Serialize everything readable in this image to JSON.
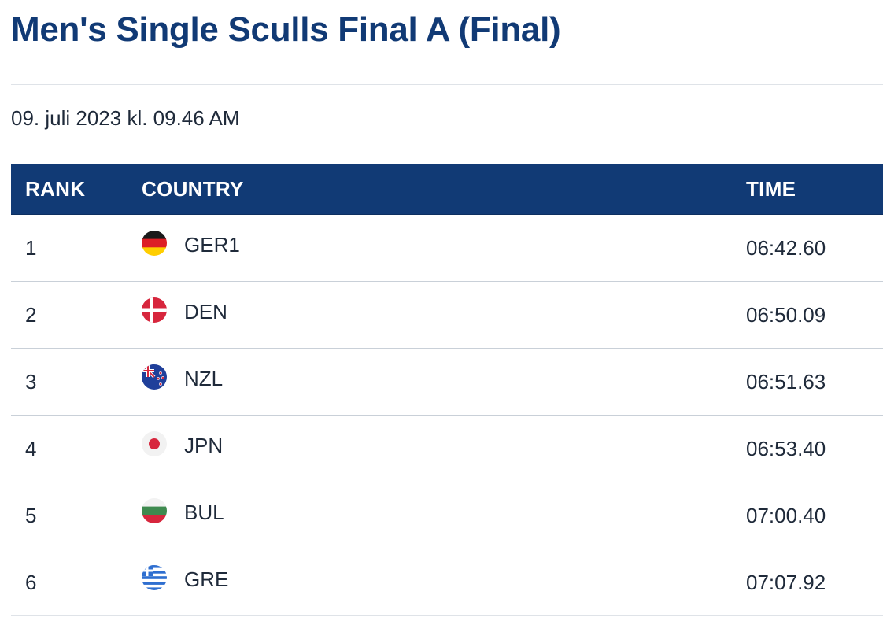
{
  "page": {
    "title": "Men's Single Sculls Final A (Final)",
    "date": "09. juli 2023 kl. 09.46 AM"
  },
  "table": {
    "headers": {
      "rank": "RANK",
      "country": "COUNTRY",
      "time": "TIME"
    },
    "rows": [
      {
        "rank": "1",
        "country": "GER1",
        "flag": "germany-flag-icon",
        "time": "06:42.60"
      },
      {
        "rank": "2",
        "country": "DEN",
        "flag": "denmark-flag-icon",
        "time": "06:50.09"
      },
      {
        "rank": "3",
        "country": "NZL",
        "flag": "new-zealand-flag-icon",
        "time": "06:51.63"
      },
      {
        "rank": "4",
        "country": "JPN",
        "flag": "japan-flag-icon",
        "time": "06:53.40"
      },
      {
        "rank": "5",
        "country": "BUL",
        "flag": "bulgaria-flag-icon",
        "time": "07:00.40"
      },
      {
        "rank": "6",
        "country": "GRE",
        "flag": "greece-flag-icon",
        "time": "07:07.92"
      }
    ]
  },
  "colors": {
    "brand": "#113a75",
    "text": "#1f2a3a",
    "divider": "#c9d0d8"
  }
}
